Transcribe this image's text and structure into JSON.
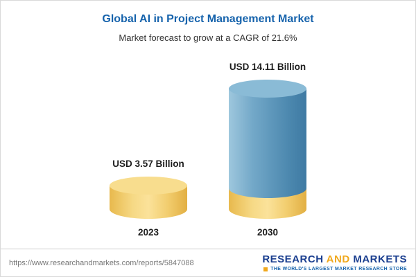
{
  "header": {
    "title": "Global AI in Project Management Market",
    "subtitle": "Market forecast to grow at a CAGR of 21.6%"
  },
  "chart_data": {
    "type": "bar",
    "categories": [
      "2023",
      "2030"
    ],
    "values": [
      3.57,
      14.11
    ],
    "value_labels": [
      "USD 3.57 Billion",
      "USD 14.11 Billion"
    ],
    "unit": "USD Billion",
    "title": "Global AI in Project Management Market",
    "subtitle": "Market forecast to grow at a CAGR of 21.6%",
    "ylim": [
      0,
      15
    ],
    "legend": "none",
    "grid": "off",
    "bar_colors": [
      "#f2c94c",
      "#5b9bc4"
    ],
    "bar_accent_base_color": "#f2c94c"
  },
  "footer": {
    "url": "https://www.researchandmarkets.com/reports/5847088",
    "logo_research": "RESEARCH",
    "logo_and": "AND",
    "logo_markets": "MARKETS",
    "tagline": "THE WORLD'S LARGEST MARKET RESEARCH STORE"
  }
}
